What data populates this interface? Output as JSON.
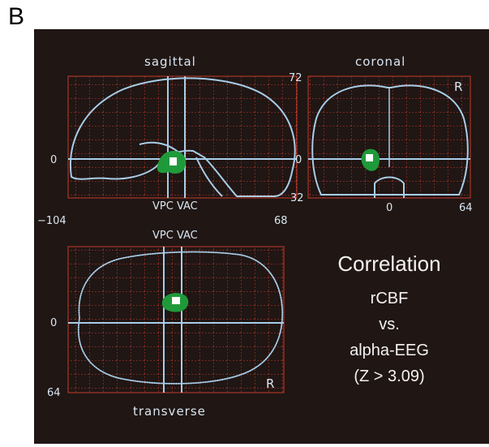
{
  "figure": {
    "panel_letter": "B",
    "views": {
      "sagittal": {
        "title": "sagittal",
        "axis_label": "VPC VAC",
        "tick_left": "−104",
        "tick_right": "68",
        "tick_zero": "0"
      },
      "coronal": {
        "title": "coronal",
        "side_marker": "R",
        "tick_top": "72",
        "tick_zero": "0",
        "tick_bottom": "32",
        "tick_x_zero": "0",
        "tick_x_right": "64"
      },
      "transverse": {
        "title": "transverse",
        "axis_label": "VPC VAC",
        "side_marker": "R",
        "tick_zero": "0",
        "tick_bottom": "64"
      }
    },
    "legend": {
      "title": "Correlation",
      "line1": "rCBF",
      "line2": "vs.",
      "line3": "alpha-EEG",
      "line4": "(Z > 3.09)"
    },
    "colors": {
      "background": "#201614",
      "grid": "#c43a2a",
      "outline": "#a8cde8",
      "blob": "#1f9a3a",
      "blob_core": "#ffffff"
    }
  }
}
